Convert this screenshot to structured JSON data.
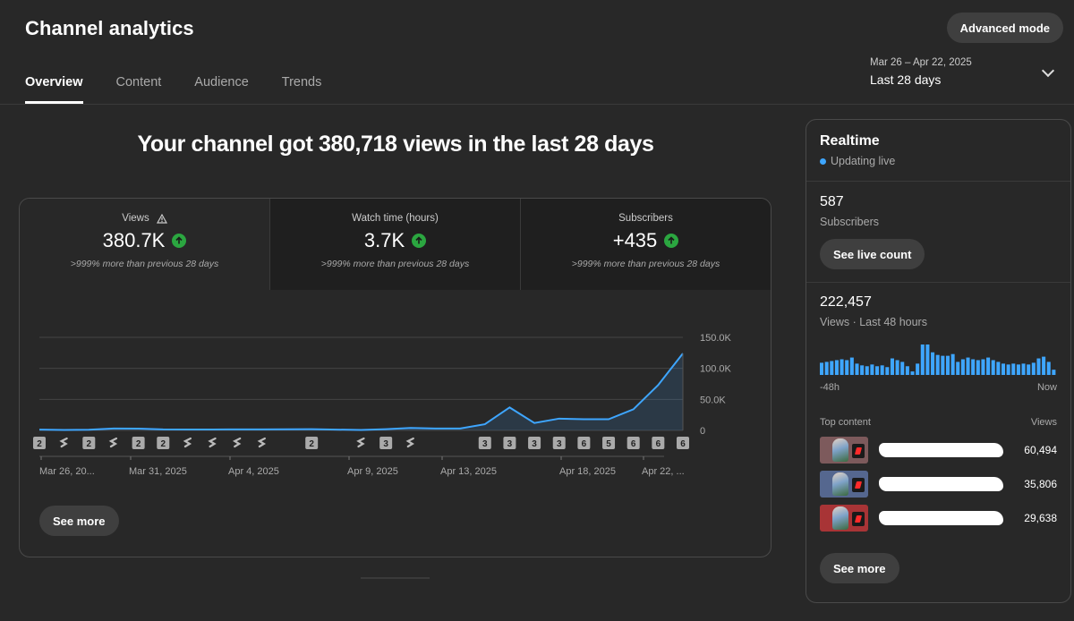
{
  "header": {
    "title": "Channel analytics",
    "advanced_mode": "Advanced mode"
  },
  "tabs": [
    {
      "label": "Overview",
      "active": true
    },
    {
      "label": "Content",
      "active": false
    },
    {
      "label": "Audience",
      "active": false
    },
    {
      "label": "Trends",
      "active": false
    }
  ],
  "date_range": {
    "sub": "Mar 26 – Apr 22, 2025",
    "main": "Last 28 days"
  },
  "headline": "Your channel got 380,718 views in the last 28 days",
  "metrics": [
    {
      "label": "Views",
      "value": "380.7K",
      "change": ">999% more than previous 28 days",
      "warning": true
    },
    {
      "label": "Watch time (hours)",
      "value": "3.7K",
      "change": ">999% more than previous 28 days"
    },
    {
      "label": "Subscribers",
      "value": "+435",
      "change": ">999% more than previous 28 days"
    }
  ],
  "chart_data": {
    "type": "area",
    "series_color": "#3ea6ff",
    "ylim": [
      0,
      150000
    ],
    "y_ticks": [
      "0",
      "50.0K",
      "100.0K",
      "150.0K"
    ],
    "x_tick_labels": [
      "Mar 26, 20...",
      "Mar 31, 2025",
      "Apr 4, 2025",
      "Apr 9, 2025",
      "Apr 13, 2025",
      "Apr 18, 2025",
      "Apr 22, ..."
    ],
    "values": [
      1200,
      800,
      1000,
      3000,
      2800,
      1600,
      1400,
      1500,
      1700,
      1600,
      1800,
      1900,
      1300,
      700,
      2000,
      4000,
      3000,
      3000,
      10000,
      37000,
      12000,
      19000,
      18000,
      18000,
      34000,
      73000,
      124000
    ],
    "markers": [
      "2",
      "s",
      "2",
      "s",
      "2",
      "2",
      "s",
      "s",
      "s",
      "s",
      "",
      "2",
      "",
      "s",
      "3",
      "s",
      "",
      "",
      "3",
      "3",
      "3",
      "3",
      "6",
      "5",
      "6",
      "6",
      "6"
    ]
  },
  "see_more": "See more",
  "realtime": {
    "title": "Realtime",
    "live": "Updating live",
    "subs_value": "587",
    "subs_label": "Subscribers",
    "live_count_btn": "See live count",
    "views_value": "222,457",
    "views_label": "Views · Last 48 hours",
    "spark": [
      14,
      15,
      16,
      17,
      18,
      17,
      20,
      13,
      11,
      10,
      12,
      10,
      11,
      9,
      19,
      17,
      15,
      10,
      4,
      13,
      35,
      35,
      26,
      23,
      22,
      22,
      24,
      15,
      18,
      20,
      18,
      17,
      18,
      20,
      17,
      15,
      13,
      12,
      13,
      12,
      13,
      12,
      14,
      19,
      21,
      15,
      6
    ],
    "axis_start": "-48h",
    "axis_end": "Now",
    "top_content_label": "Top content",
    "views_col_label": "Views",
    "top_content": [
      {
        "views": "60,494",
        "bg": "#7d5a5c"
      },
      {
        "views": "35,806",
        "bg": "#55678f"
      },
      {
        "views": "29,638",
        "bg": "#a83436"
      }
    ],
    "see_more": "See more"
  }
}
